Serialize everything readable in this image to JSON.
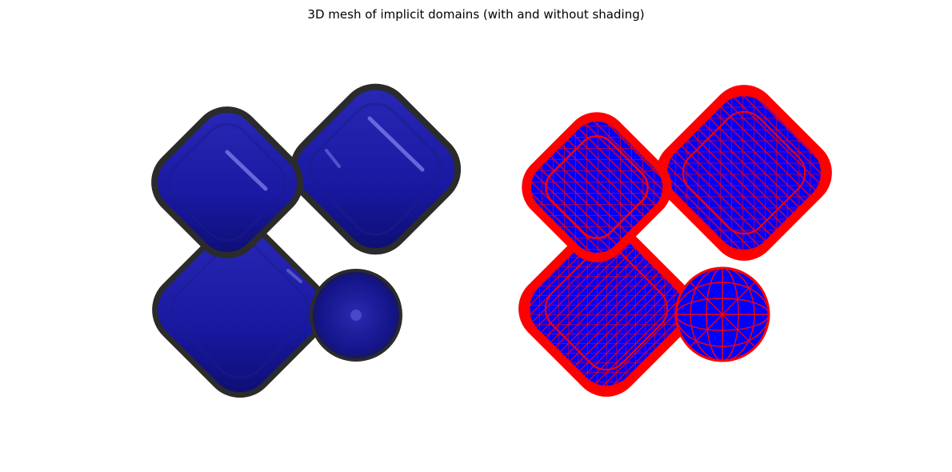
{
  "figure": {
    "title": "3D mesh of implicit domains (with and without shading)"
  },
  "panels": [
    {
      "name": "shaded",
      "surface_color": "#1616a0",
      "edge_color": "#2a2a2a"
    },
    {
      "name": "wireframe",
      "surface_color": "#0000ff",
      "edge_color": "#ff0000"
    }
  ],
  "shapes": [
    "rounded-cube-upper-left",
    "rounded-cube-upper-right",
    "rounded-cube-lower",
    "sphere"
  ]
}
